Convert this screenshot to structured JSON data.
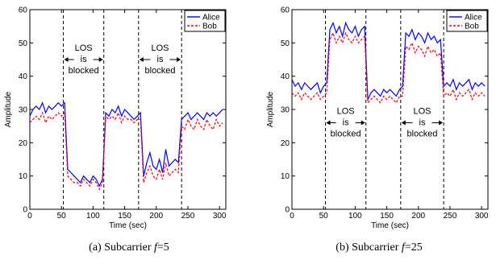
{
  "chart_data": [
    {
      "type": "line",
      "caption_label": "(a) Subcarrier",
      "caption_var": "f",
      "caption_value": "=5",
      "xlabel": "Time (sec)",
      "ylabel": "Amplitude",
      "xlim": [
        0,
        310
      ],
      "ylim": [
        0,
        60
      ],
      "xticks": [
        "0",
        "50",
        "100",
        "150",
        "200",
        "250",
        "300"
      ],
      "yticks": [
        "0",
        "10",
        "20",
        "30",
        "40",
        "50",
        "60"
      ],
      "grid": false,
      "legend_position": "top-right",
      "series": [
        {
          "name": "Alice",
          "color": "#0000ff",
          "style": "solid",
          "x": [
            0,
            5,
            10,
            15,
            20,
            25,
            30,
            35,
            40,
            45,
            50,
            55,
            60,
            65,
            70,
            75,
            80,
            85,
            90,
            95,
            100,
            105,
            110,
            115,
            120,
            125,
            130,
            135,
            140,
            145,
            150,
            155,
            160,
            165,
            170,
            175,
            180,
            185,
            190,
            195,
            200,
            205,
            210,
            215,
            220,
            225,
            230,
            235,
            240,
            245,
            250,
            255,
            260,
            265,
            270,
            275,
            280,
            285,
            290,
            295,
            300,
            305
          ],
          "y": [
            28,
            30,
            31,
            30,
            32,
            29,
            31,
            30,
            31,
            32,
            31,
            32,
            12,
            11,
            10,
            9,
            8,
            10,
            9,
            8,
            10,
            9,
            7,
            9,
            29,
            28,
            30,
            29,
            31,
            28,
            30,
            29,
            28,
            27,
            28,
            29,
            10,
            14,
            17,
            13,
            12,
            15,
            11,
            18,
            13,
            14,
            15,
            14,
            27,
            28,
            29,
            27,
            28,
            29,
            28,
            27,
            29,
            28,
            29,
            28,
            29,
            30
          ]
        },
        {
          "name": "Bob",
          "color": "#ff0000",
          "style": "dashed",
          "x": [
            0,
            5,
            10,
            15,
            20,
            25,
            30,
            35,
            40,
            45,
            50,
            55,
            60,
            65,
            70,
            75,
            80,
            85,
            90,
            95,
            100,
            105,
            110,
            115,
            120,
            125,
            130,
            135,
            140,
            145,
            150,
            155,
            160,
            165,
            170,
            175,
            180,
            185,
            190,
            195,
            200,
            205,
            210,
            215,
            220,
            225,
            230,
            235,
            240,
            245,
            250,
            255,
            260,
            265,
            270,
            275,
            280,
            285,
            290,
            295,
            300,
            305
          ],
          "y": [
            26,
            27,
            28,
            27,
            29,
            26,
            28,
            27,
            28,
            29,
            28,
            29,
            10,
            9,
            8,
            8,
            7,
            9,
            8,
            7,
            9,
            8,
            6,
            8,
            28,
            27,
            28,
            27,
            29,
            26,
            28,
            27,
            27,
            26,
            27,
            27,
            8,
            11,
            13,
            10,
            9,
            12,
            9,
            14,
            10,
            11,
            12,
            11,
            25,
            24,
            27,
            25,
            24,
            27,
            25,
            24,
            27,
            25,
            24,
            27,
            25,
            26
          ]
        }
      ],
      "annotations": [
        {
          "lines": [
            "LOS",
            "is",
            "blocked"
          ],
          "x_from": 53,
          "x_to": 117,
          "y": 45
        },
        {
          "lines": [
            "LOS",
            "is",
            "blocked"
          ],
          "x_from": 172,
          "x_to": 240,
          "y": 45
        }
      ],
      "vlines": [
        53,
        117,
        172,
        240
      ]
    },
    {
      "type": "line",
      "caption_label": "(b) Subcarrier",
      "caption_var": "f",
      "caption_value": "=25",
      "xlabel": "Time (sec)",
      "ylabel": "Amplitude",
      "xlim": [
        0,
        310
      ],
      "ylim": [
        0,
        60
      ],
      "xticks": [
        "0",
        "50",
        "100",
        "150",
        "200",
        "250",
        "300"
      ],
      "yticks": [
        "0",
        "10",
        "20",
        "30",
        "40",
        "50",
        "60"
      ],
      "grid": false,
      "legend_position": "top-right",
      "series": [
        {
          "name": "Alice",
          "color": "#0000ff",
          "style": "solid",
          "x": [
            0,
            5,
            10,
            15,
            20,
            25,
            30,
            35,
            40,
            45,
            50,
            55,
            60,
            65,
            70,
            75,
            80,
            85,
            90,
            95,
            100,
            105,
            110,
            115,
            120,
            125,
            130,
            135,
            140,
            145,
            150,
            155,
            160,
            165,
            170,
            175,
            180,
            185,
            190,
            195,
            200,
            205,
            210,
            215,
            220,
            225,
            230,
            235,
            240,
            245,
            250,
            255,
            260,
            265,
            270,
            275,
            280,
            285,
            290,
            295,
            300,
            305
          ],
          "y": [
            39,
            37,
            38,
            36,
            38,
            37,
            36,
            37,
            38,
            35,
            37,
            38,
            54,
            56,
            53,
            55,
            52,
            56,
            54,
            53,
            55,
            52,
            54,
            55,
            33,
            35,
            36,
            35,
            34,
            36,
            35,
            36,
            35,
            34,
            36,
            37,
            53,
            52,
            54,
            51,
            53,
            52,
            50,
            53,
            51,
            52,
            50,
            51,
            37,
            38,
            37,
            39,
            36,
            38,
            37,
            38,
            39,
            36,
            38,
            37,
            38,
            37
          ]
        },
        {
          "name": "Bob",
          "color": "#ff0000",
          "style": "dashed",
          "x": [
            0,
            5,
            10,
            15,
            20,
            25,
            30,
            35,
            40,
            45,
            50,
            55,
            60,
            65,
            70,
            75,
            80,
            85,
            90,
            95,
            100,
            105,
            110,
            115,
            120,
            125,
            130,
            135,
            140,
            145,
            150,
            155,
            160,
            165,
            170,
            175,
            180,
            185,
            190,
            195,
            200,
            205,
            210,
            215,
            220,
            225,
            230,
            235,
            240,
            245,
            250,
            255,
            260,
            265,
            270,
            275,
            280,
            285,
            290,
            295,
            300,
            305
          ],
          "y": [
            35,
            34,
            35,
            33,
            35,
            34,
            33,
            34,
            35,
            33,
            34,
            35,
            51,
            53,
            50,
            52,
            50,
            53,
            51,
            50,
            52,
            50,
            51,
            52,
            32,
            33,
            34,
            33,
            32,
            34,
            33,
            34,
            33,
            32,
            34,
            34,
            49,
            48,
            50,
            47,
            49,
            48,
            46,
            49,
            47,
            48,
            46,
            47,
            34,
            35,
            34,
            36,
            33,
            35,
            34,
            35,
            36,
            33,
            35,
            34,
            35,
            34
          ]
        }
      ],
      "annotations": [
        {
          "lines": [
            "LOS",
            "is",
            "blocked"
          ],
          "x_from": 53,
          "x_to": 117,
          "y": 26
        },
        {
          "lines": [
            "LOS",
            "is",
            "blocked"
          ],
          "x_from": 172,
          "x_to": 240,
          "y": 26
        }
      ],
      "vlines": [
        53,
        117,
        172,
        240
      ]
    }
  ]
}
